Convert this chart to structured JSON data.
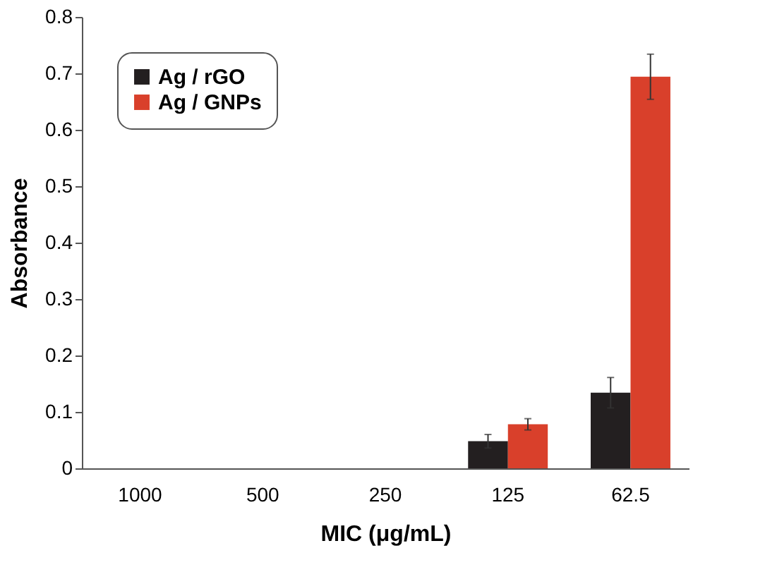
{
  "chart_data": {
    "type": "bar",
    "xlabel": "MIC (μg/mL)",
    "ylabel": "Absorbance",
    "categories": [
      "1000",
      "500",
      "250",
      "125",
      "62.5"
    ],
    "series": [
      {
        "name": "Ag / rGO",
        "color": "#231f20",
        "values": [
          null,
          null,
          null,
          0.048,
          0.134
        ],
        "errors": [
          null,
          null,
          null,
          0.012,
          0.027
        ]
      },
      {
        "name": "Ag / GNPs",
        "color": "#d9402b",
        "values": [
          null,
          null,
          null,
          0.078,
          0.694
        ],
        "errors": [
          null,
          null,
          null,
          0.01,
          0.04
        ]
      }
    ],
    "ylim": [
      0,
      0.8
    ],
    "yticks": [
      0,
      0.1,
      0.2,
      0.3,
      0.4,
      0.5,
      0.6,
      0.7,
      0.8
    ],
    "grid": false,
    "legend": "top left"
  }
}
